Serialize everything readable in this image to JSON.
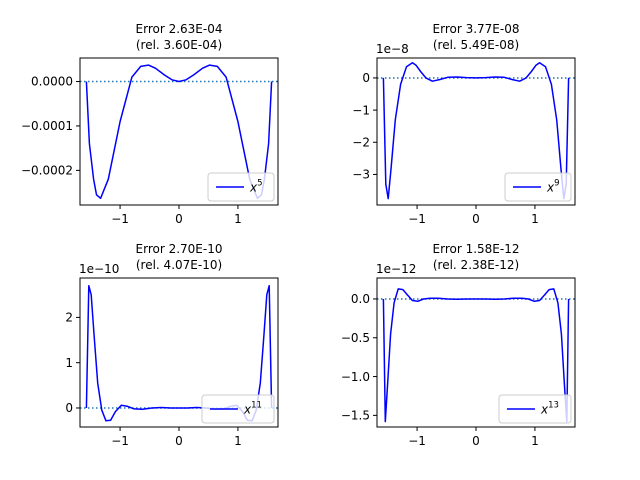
{
  "chart_data": [
    {
      "type": "line",
      "title_line1": "Error 2.63E-04",
      "title_line2": "(rel. 3.60E-04)",
      "offset_text": "",
      "legend_base": "x",
      "legend_exp": "5",
      "legend_position": "lower right",
      "xlim": [
        -1.68,
        1.68
      ],
      "ylim": [
        -0.000278,
        5.3e-05
      ],
      "xticks": [
        -1,
        0,
        1
      ],
      "xtick_labels": [
        "−1",
        "0",
        "1"
      ],
      "yticks": [
        0.0,
        -0.0001,
        -0.0002
      ],
      "ytick_labels": [
        "0.0000",
        "−0.0001",
        "−0.0002"
      ],
      "reference_line": 0,
      "series": [
        {
          "name": "x⁵",
          "color": "#0000ff",
          "x": [
            -1.5708,
            -1.52,
            -1.45,
            -1.4,
            -1.33,
            -1.2,
            -1.0,
            -0.8,
            -0.65,
            -0.52,
            -0.4,
            -0.25,
            -0.12,
            0,
            0.12,
            0.25,
            0.4,
            0.52,
            0.65,
            0.8,
            1.0,
            1.2,
            1.33,
            1.4,
            1.45,
            1.52,
            1.5708
          ],
          "y": [
            0,
            -0.00014,
            -0.00022,
            -0.000255,
            -0.000263,
            -0.00022,
            -9e-05,
            1e-05,
            3.4e-05,
            3.7e-05,
            3e-05,
            1.5e-05,
            4e-06,
            0,
            4e-06,
            1.5e-05,
            3e-05,
            3.7e-05,
            3.4e-05,
            1e-05,
            -9e-05,
            -0.00022,
            -0.000263,
            -0.000255,
            -0.00022,
            -0.00014,
            0
          ]
        }
      ]
    },
    {
      "type": "line",
      "title_line1": "Error 3.77E-08",
      "title_line2": "(rel. 5.49E-08)",
      "offset_text": "1e−8",
      "legend_base": "x",
      "legend_exp": "9",
      "legend_position": "lower right",
      "xlim": [
        -1.68,
        1.68
      ],
      "ylim": [
        -3.95e-08,
        6.2e-09
      ],
      "xticks": [
        -1,
        0,
        1
      ],
      "xtick_labels": [
        "−1",
        "0",
        "1"
      ],
      "yticks": [
        0,
        -1e-08,
        -2e-08,
        -3e-08
      ],
      "ytick_labels": [
        "0",
        "−1",
        "−2",
        "−3"
      ],
      "reference_line": 0,
      "series": [
        {
          "name": "x⁹",
          "color": "#0000ff",
          "x": [
            -1.5708,
            -1.53,
            -1.49,
            -1.44,
            -1.37,
            -1.28,
            -1.18,
            -1.08,
            -1.02,
            -0.94,
            -0.85,
            -0.74,
            -0.62,
            -0.48,
            -0.32,
            -0.16,
            0,
            0.16,
            0.32,
            0.48,
            0.62,
            0.74,
            0.85,
            0.94,
            1.02,
            1.08,
            1.18,
            1.28,
            1.37,
            1.44,
            1.49,
            1.53,
            1.5708
          ],
          "y": [
            0,
            -3.3e-08,
            -3.75e-08,
            -2.8e-08,
            -1.3e-08,
            -2e-09,
            3.5e-09,
            4.7e-09,
            4e-09,
            2e-09,
            0.0,
            -1e-09,
            -5e-10,
            2e-10,
            3e-10,
            1e-10,
            0,
            1e-10,
            3e-10,
            2e-10,
            -5e-10,
            -1e-09,
            0.0,
            2e-09,
            4e-09,
            4.7e-09,
            3.5e-09,
            -2e-09,
            -1.3e-08,
            -2.8e-08,
            -3.75e-08,
            -3.3e-08,
            0
          ]
        }
      ]
    },
    {
      "type": "line",
      "title_line1": "Error 2.70E-10",
      "title_line2": "(rel. 4.07E-10)",
      "offset_text": "1e−10",
      "legend_base": "x",
      "legend_exp": "11",
      "legend_position": "lower right",
      "xlim": [
        -1.68,
        1.68
      ],
      "ylim": [
        -4.2e-11,
        2.87e-10
      ],
      "xticks": [
        -1,
        0,
        1
      ],
      "xtick_labels": [
        "−1",
        "0",
        "1"
      ],
      "yticks": [
        0,
        1e-10,
        2e-10
      ],
      "ytick_labels": [
        "0",
        "1",
        "2"
      ],
      "reference_line": 0,
      "series": [
        {
          "name": "x¹¹",
          "color": "#0000ff",
          "x": [
            -1.5708,
            -1.53,
            -1.49,
            -1.44,
            -1.38,
            -1.31,
            -1.24,
            -1.16,
            -1.08,
            -0.98,
            -0.88,
            -0.76,
            -0.62,
            -0.46,
            -0.3,
            -0.14,
            0,
            0.14,
            0.3,
            0.46,
            0.62,
            0.76,
            0.88,
            0.98,
            1.08,
            1.16,
            1.24,
            1.31,
            1.38,
            1.44,
            1.49,
            1.53,
            1.5708
          ],
          "y": [
            0,
            2.7e-10,
            2.5e-10,
            1.6e-10,
            5.5e-11,
            -5e-12,
            -2.8e-11,
            -2.7e-11,
            -8e-12,
            6e-12,
            4e-12,
            -2e-12,
            -3e-12,
            0.0,
            1e-12,
            0.0,
            0,
            0.0,
            1e-12,
            0.0,
            -3e-12,
            -2e-12,
            4e-12,
            6e-12,
            -8e-12,
            -2.7e-11,
            -2.8e-11,
            -5e-12,
            5.5e-11,
            1.6e-10,
            2.5e-10,
            2.7e-10,
            0
          ]
        }
      ]
    },
    {
      "type": "line",
      "title_line1": "Error 1.58E-12",
      "title_line2": "(rel. 2.38E-12)",
      "offset_text": "1e−12",
      "legend_base": "x",
      "legend_exp": "13",
      "legend_position": "lower right",
      "xlim": [
        -1.68,
        1.68
      ],
      "ylim": [
        -1.65e-12,
        2.7e-13
      ],
      "xticks": [
        -1,
        0,
        1
      ],
      "xtick_labels": [
        "−1",
        "0",
        "1"
      ],
      "yticks": [
        0,
        -5e-13,
        -1e-12,
        -1.5e-12
      ],
      "ytick_labels": [
        "0.0",
        "−0.5",
        "−1.0",
        "−1.5"
      ],
      "reference_line": 0,
      "series": [
        {
          "name": "x¹³",
          "color": "#0000ff",
          "x": [
            -1.5708,
            -1.54,
            -1.5,
            -1.45,
            -1.39,
            -1.32,
            -1.24,
            -1.16,
            -1.08,
            -0.99,
            -0.89,
            -0.78,
            -0.64,
            -0.48,
            -0.32,
            -0.16,
            0,
            0.16,
            0.32,
            0.48,
            0.64,
            0.78,
            0.89,
            0.99,
            1.08,
            1.16,
            1.24,
            1.32,
            1.39,
            1.45,
            1.5,
            1.54,
            1.5708
          ],
          "y": [
            0,
            -1.58e-12,
            -1.1e-12,
            -4.5e-13,
            -5e-14,
            1.3e-13,
            1.2e-13,
            5e-14,
            -2e-14,
            -3e-14,
            0.0,
            1e-14,
            1e-14,
            0.0,
            -5e-15,
            0.0,
            0,
            0.0,
            -5e-15,
            0.0,
            1e-14,
            1e-14,
            0.0,
            -3e-14,
            -2e-14,
            5e-14,
            1.2e-13,
            1.3e-13,
            -5e-14,
            -4.5e-13,
            -1.1e-12,
            -1.58e-12,
            0
          ]
        }
      ]
    }
  ]
}
